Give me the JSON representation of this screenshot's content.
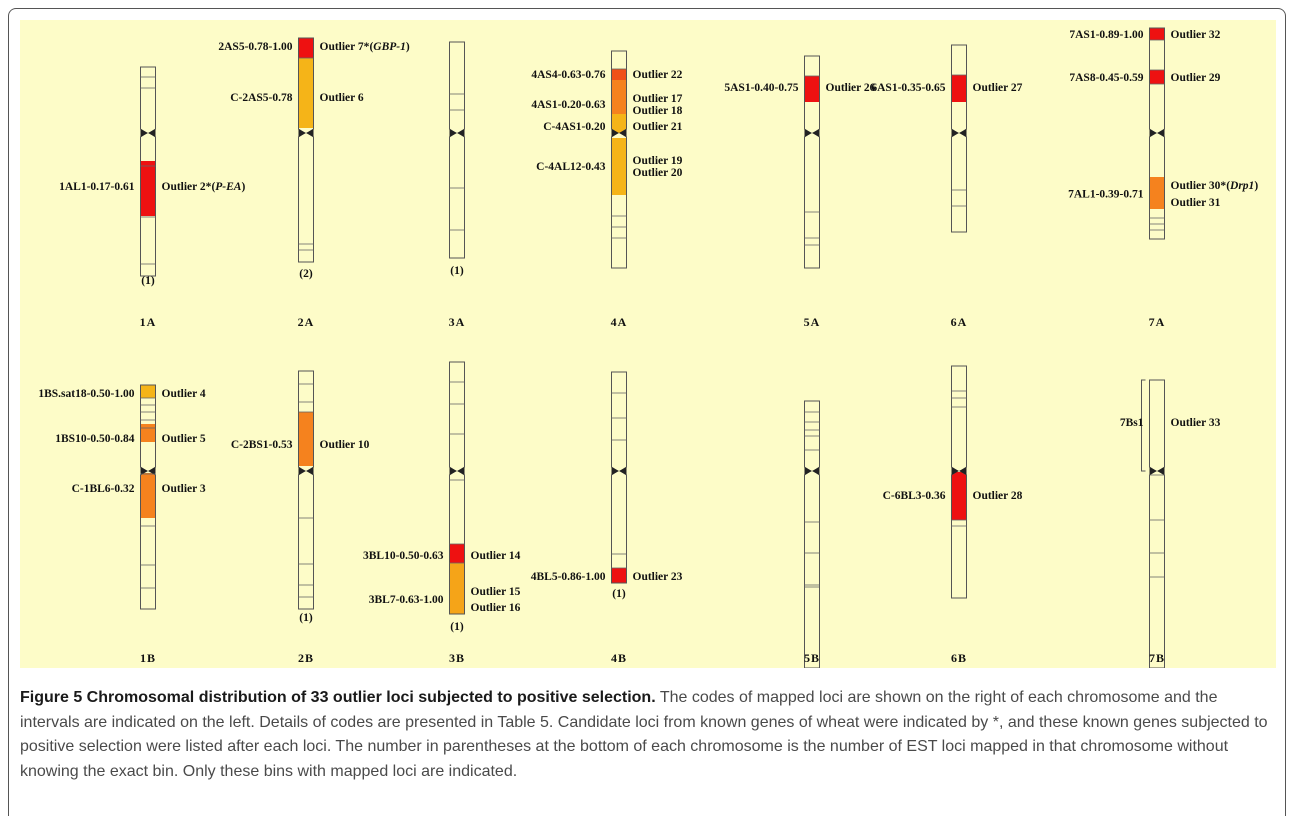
{
  "figure": {
    "rows": [
      {
        "chromosomes": [
          {
            "name": "1A",
            "count": "(1)",
            "loci": [
              {
                "interval": "1AL1-0.17-0.61",
                "outliers": [
                  {
                    "text": "Outlier 2*",
                    "gene": "P-EA"
                  }
                ],
                "color": "#ee1111"
              }
            ]
          },
          {
            "name": "2A",
            "count": "(2)",
            "loci": [
              {
                "interval": "2AS5-0.78-1.00",
                "outliers": [
                  {
                    "text": "Outlier 7*",
                    "gene": "GBP-1"
                  }
                ],
                "color": "#ee1111"
              },
              {
                "interval": "C-2AS5-0.78",
                "outliers": [
                  {
                    "text": "Outlier 6"
                  }
                ],
                "color": "#f5b418"
              }
            ]
          },
          {
            "name": "3A",
            "count": "(1)",
            "loci": []
          },
          {
            "name": "4A",
            "count": "",
            "loci": [
              {
                "interval": "4AS4-0.63-0.76",
                "outliers": [
                  {
                    "text": "Outlier 22"
                  }
                ],
                "color": "#f05018"
              },
              {
                "interval": "4AS1-0.20-0.63",
                "outliers": [
                  {
                    "text": "Outlier 17"
                  },
                  {
                    "text": "Outlier 18"
                  }
                ],
                "color": "#f5821e"
              },
              {
                "interval": "C-4AS1-0.20",
                "outliers": [
                  {
                    "text": "Outlier 21"
                  }
                ],
                "color": "#f5b418"
              },
              {
                "interval": "C-4AL12-0.43",
                "outliers": [
                  {
                    "text": "Outlier 19"
                  },
                  {
                    "text": "Outlier 20"
                  }
                ],
                "color": "#f5b418"
              }
            ]
          },
          {
            "name": "5A",
            "count": "",
            "loci": [
              {
                "interval": "5AS1-0.40-0.75",
                "outliers": [
                  {
                    "text": "Outlier 26"
                  }
                ],
                "color": "#ee1111"
              }
            ]
          },
          {
            "name": "6A",
            "count": "",
            "loci": [
              {
                "interval": "6AS1-0.35-0.65",
                "outliers": [
                  {
                    "text": "Outlier 27"
                  }
                ],
                "color": "#ee1111"
              }
            ]
          },
          {
            "name": "7A",
            "count": "",
            "loci": [
              {
                "interval": "7AS1-0.89-1.00",
                "outliers": [
                  {
                    "text": "Outlier 32"
                  }
                ],
                "color": "#ee1111"
              },
              {
                "interval": "7AS8-0.45-0.59",
                "outliers": [
                  {
                    "text": "Outlier 29"
                  }
                ],
                "color": "#ee1111"
              },
              {
                "interval": "7AL1-0.39-0.71",
                "outliers": [
                  {
                    "text": "Outlier 30*",
                    "gene": "Drp1"
                  },
                  {
                    "text": "Outlier 31"
                  }
                ],
                "color": "#f5821e"
              }
            ]
          }
        ]
      },
      {
        "chromosomes": [
          {
            "name": "1B",
            "count": "",
            "loci": [
              {
                "interval": "1BS.sat18-0.50-1.00",
                "outliers": [
                  {
                    "text": "Outlier 4"
                  }
                ],
                "color": "#f5b418"
              },
              {
                "interval": "1BS10-0.50-0.84",
                "outliers": [
                  {
                    "text": "Outlier 5"
                  }
                ],
                "color": "#f5821e"
              },
              {
                "interval": "C-1BL6-0.32",
                "outliers": [
                  {
                    "text": "Outlier 3"
                  }
                ],
                "color": "#f5821e"
              }
            ]
          },
          {
            "name": "2B",
            "count": "(1)",
            "loci": [
              {
                "interval": "C-2BS1-0.53",
                "outliers": [
                  {
                    "text": "Outlier 10"
                  }
                ],
                "color": "#f5821e"
              }
            ]
          },
          {
            "name": "3B",
            "count": "(1)",
            "loci": [
              {
                "interval": "3BL10-0.50-0.63",
                "outliers": [
                  {
                    "text": "Outlier 14"
                  }
                ],
                "color": "#ee1111"
              },
              {
                "interval": "3BL7-0.63-1.00",
                "outliers": [
                  {
                    "text": "Outlier 15"
                  },
                  {
                    "text": "Outlier 16"
                  }
                ],
                "color": "#f5a418"
              }
            ]
          },
          {
            "name": "4B",
            "count": "(1)",
            "loci": [
              {
                "interval": "4BL5-0.86-1.00",
                "outliers": [
                  {
                    "text": "Outlier 23"
                  }
                ],
                "color": "#ee1111"
              }
            ]
          },
          {
            "name": "5B",
            "count": "",
            "loci": []
          },
          {
            "name": "6B",
            "count": "",
            "loci": [
              {
                "interval": "C-6BL3-0.36",
                "outliers": [
                  {
                    "text": "Outlier 28"
                  }
                ],
                "color": "#ee1111"
              }
            ]
          },
          {
            "name": "7B",
            "count": "",
            "loci": [
              {
                "interval": "7Bs1",
                "outliers": [
                  {
                    "text": "Outlier 33"
                  }
                ],
                "color": "none"
              }
            ]
          }
        ]
      }
    ]
  },
  "caption": {
    "title": "Figure 5 Chromosomal distribution of 33 outlier loci subjected to positive selection.",
    "body": " The codes of mapped loci are shown on the right of each chromosome and the intervals are indicated on the left. Details of codes are presented in Table 5. Candidate loci from known genes of wheat were indicated by *, and these known genes subjected to positive selection were listed after each loci. The number in parentheses at the bottom of each chromosome is the number of EST loci mapped in that chromosome without knowing the exact bin. Only these bins with mapped loci are indicated."
  }
}
